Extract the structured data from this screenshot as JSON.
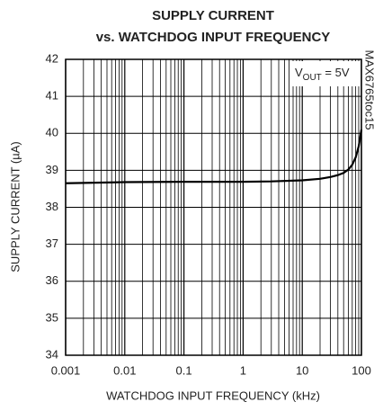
{
  "chart_data": {
    "type": "line",
    "title": "SUPPLY CURRENT",
    "subtitle": "vs. WATCHDOG INPUT FREQUENCY",
    "x_label": "WATCHDOG INPUT FREQUENCY (kHz)",
    "y_label": "SUPPLY CURRENT (µA)",
    "side_note": "MAX6765toc15",
    "annotation": {
      "text": "V",
      "subscript": "OUT",
      "suffix": " = 5V"
    },
    "x_log": true,
    "grid": true,
    "minor_grid": true,
    "xlim": [
      0.001,
      100
    ],
    "xticks": [
      0.001,
      0.01,
      0.1,
      1,
      10,
      100
    ],
    "ylim": [
      34,
      42
    ],
    "yticks": [
      34,
      35,
      36,
      37,
      38,
      39,
      40,
      41,
      42
    ],
    "series": [
      {
        "color": "#000000",
        "x": [
          0.001,
          0.01,
          0.1,
          1,
          3,
          10,
          20,
          30,
          40,
          50,
          60,
          70,
          80,
          90,
          100
        ],
        "values": [
          38.65,
          38.68,
          38.69,
          38.69,
          38.7,
          38.73,
          38.77,
          38.82,
          38.87,
          38.93,
          39.02,
          39.15,
          39.35,
          39.65,
          40.1
        ]
      }
    ]
  }
}
